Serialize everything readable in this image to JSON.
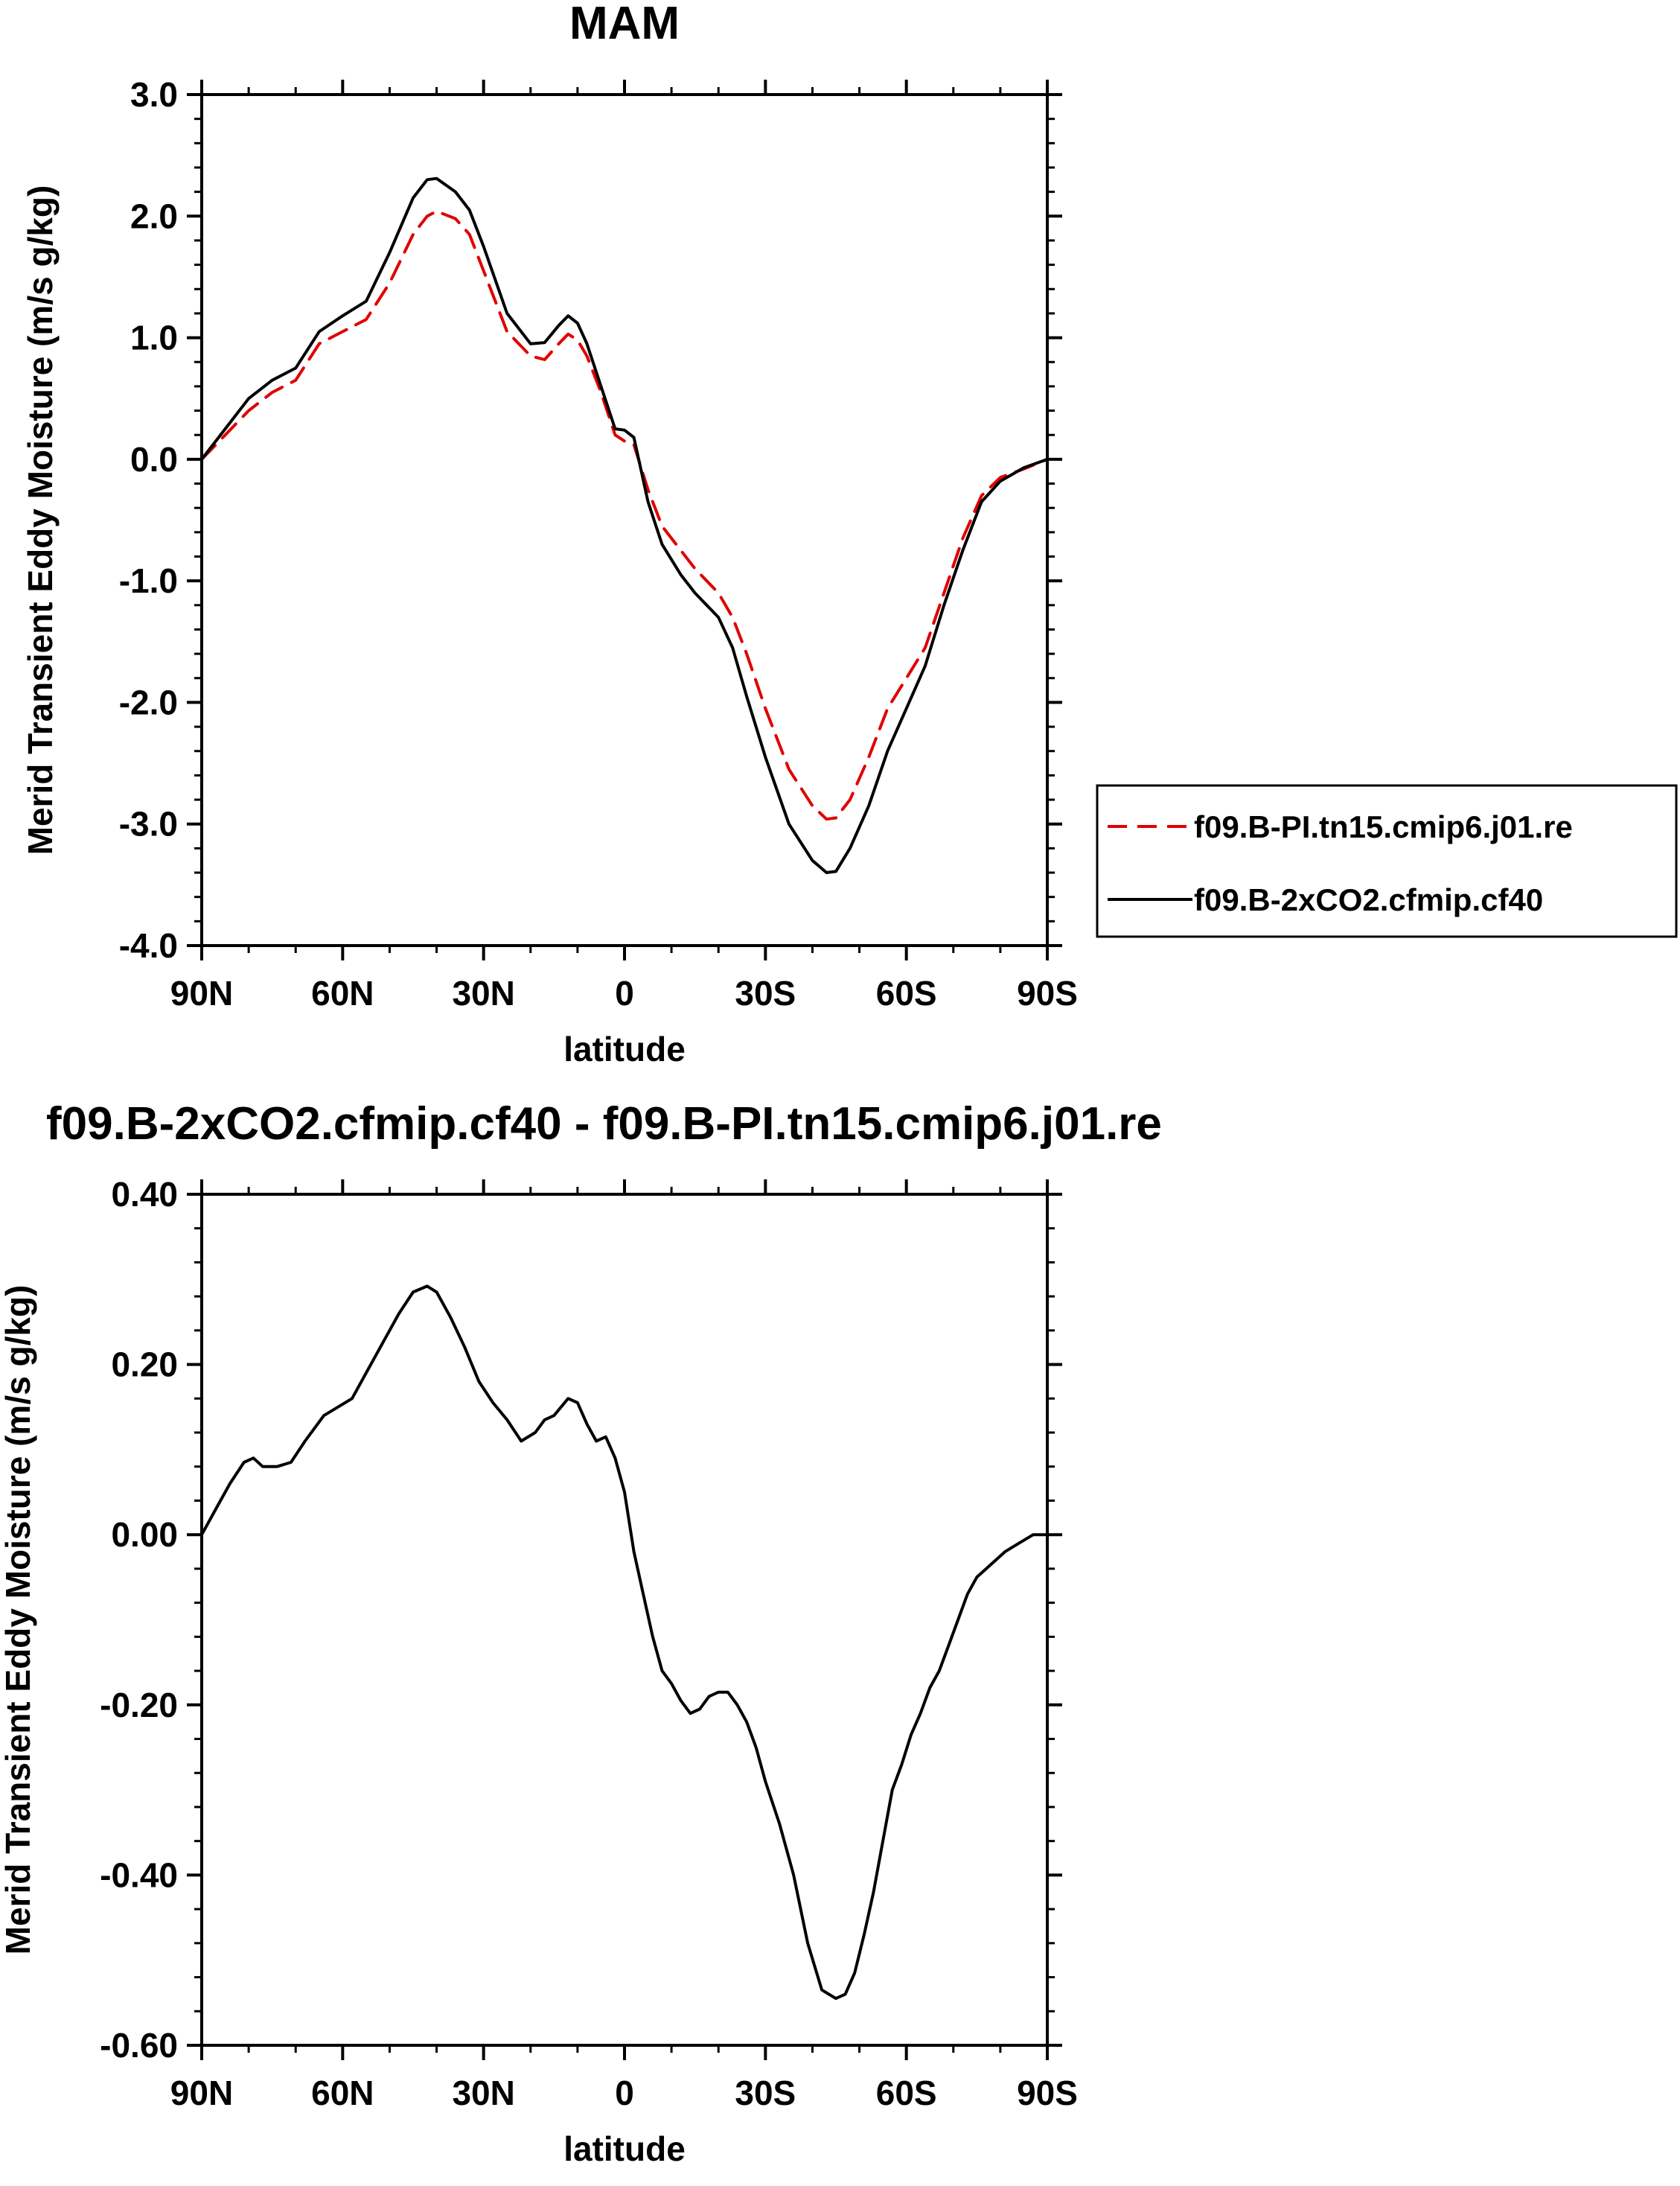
{
  "chart_data": [
    {
      "type": "line",
      "title": "MAM",
      "xlabel": "latitude",
      "ylabel": "Merid Transient Eddy Moisture (m/s g/kg)",
      "xlim": [
        90,
        -90
      ],
      "ylim": [
        -4.0,
        3.0
      ],
      "x_ticks": [
        90,
        60,
        30,
        0,
        -30,
        -60,
        -90
      ],
      "x_tick_labels": [
        "90N",
        "60N",
        "30N",
        "0",
        "30S",
        "60S",
        "90S"
      ],
      "y_ticks": [
        -4.0,
        -3.0,
        -2.0,
        -1.0,
        0.0,
        1.0,
        2.0,
        3.0
      ],
      "y_tick_labels": [
        "-4.0",
        "-3.0",
        "-2.0",
        "-1.0",
        "0.0",
        "1.0",
        "2.0",
        "3.0"
      ],
      "grid": false,
      "legend": "right",
      "series": [
        {
          "name": "f09.B-PI.tn15.cmip6.j01.re",
          "color": "#e00000",
          "dash": "dashed",
          "x": [
            90,
            85,
            80,
            75,
            70,
            65,
            60,
            55,
            50,
            45,
            42,
            40,
            36,
            33,
            30,
            25,
            20,
            17,
            14,
            12,
            10,
            8,
            5,
            2,
            0,
            -2,
            -5,
            -8,
            -12,
            -15,
            -20,
            -23,
            -26,
            -30,
            -35,
            -40,
            -43,
            -45,
            -48,
            -52,
            -56,
            -60,
            -64,
            -68,
            -72,
            -76,
            -80,
            -85,
            -90
          ],
          "y": [
            0.0,
            0.2,
            0.4,
            0.55,
            0.65,
            0.95,
            1.05,
            1.15,
            1.45,
            1.85,
            2.0,
            2.04,
            1.98,
            1.85,
            1.55,
            1.05,
            0.85,
            0.82,
            0.95,
            1.03,
            0.98,
            0.85,
            0.55,
            0.2,
            0.15,
            0.12,
            -0.25,
            -0.55,
            -0.75,
            -0.9,
            -1.1,
            -1.3,
            -1.6,
            -2.05,
            -2.55,
            -2.85,
            -2.96,
            -2.95,
            -2.8,
            -2.45,
            -2.05,
            -1.8,
            -1.55,
            -1.1,
            -0.65,
            -0.3,
            -0.15,
            -0.08,
            0.0
          ]
        },
        {
          "name": "f09.B-2xCO2.cfmip.cf40",
          "color": "#000000",
          "dash": "solid",
          "x": [
            90,
            85,
            80,
            75,
            70,
            65,
            60,
            55,
            50,
            45,
            42,
            40,
            36,
            33,
            30,
            25,
            20,
            17,
            14,
            12,
            10,
            8,
            5,
            2,
            0,
            -2,
            -5,
            -8,
            -12,
            -15,
            -20,
            -23,
            -26,
            -30,
            -35,
            -40,
            -43,
            -45,
            -48,
            -52,
            -56,
            -60,
            -64,
            -68,
            -72,
            -76,
            -80,
            -85,
            -90
          ],
          "y": [
            0.0,
            0.25,
            0.5,
            0.65,
            0.75,
            1.05,
            1.18,
            1.3,
            1.7,
            2.15,
            2.3,
            2.31,
            2.2,
            2.05,
            1.75,
            1.2,
            0.95,
            0.96,
            1.1,
            1.18,
            1.12,
            0.95,
            0.6,
            0.25,
            0.24,
            0.18,
            -0.35,
            -0.7,
            -0.95,
            -1.1,
            -1.3,
            -1.55,
            -1.95,
            -2.45,
            -3.0,
            -3.3,
            -3.4,
            -3.39,
            -3.2,
            -2.85,
            -2.4,
            -2.05,
            -1.7,
            -1.2,
            -0.75,
            -0.35,
            -0.18,
            -0.07,
            0.0
          ]
        }
      ]
    },
    {
      "type": "line",
      "title": "f09.B-2xCO2.cfmip.cf40 - f09.B-PI.tn15.cmip6.j01.re",
      "xlabel": "latitude",
      "ylabel": "Merid Transient Eddy Moisture (m/s g/kg)",
      "xlim": [
        90,
        -90
      ],
      "ylim": [
        -0.6,
        0.4
      ],
      "x_ticks": [
        90,
        60,
        30,
        0,
        -30,
        -60,
        -90
      ],
      "x_tick_labels": [
        "90N",
        "60N",
        "30N",
        "0",
        "30S",
        "60S",
        "90S"
      ],
      "y_ticks": [
        -0.6,
        -0.4,
        -0.2,
        0.0,
        0.2,
        0.4
      ],
      "y_tick_labels": [
        "-0.60",
        "-0.40",
        "-0.20",
        "0.00",
        "0.20",
        "0.40"
      ],
      "grid": false,
      "series": [
        {
          "color": "#000000",
          "dash": "solid",
          "x": [
            90,
            87,
            84,
            81,
            79,
            77,
            74,
            71,
            68,
            64,
            61,
            58,
            55,
            51,
            48,
            45,
            42,
            40,
            37,
            34,
            31,
            28,
            25,
            22,
            19,
            17,
            15,
            12,
            10,
            8,
            6,
            4,
            2,
            0,
            -2,
            -4,
            -6,
            -8,
            -10,
            -12,
            -14,
            -16,
            -18,
            -20,
            -22,
            -24,
            -26,
            -28,
            -30,
            -33,
            -36,
            -39,
            -42,
            -45,
            -47,
            -49,
            -51,
            -53,
            -55,
            -57,
            -59,
            -61,
            -63,
            -65,
            -67,
            -69,
            -71,
            -73,
            -75,
            -77,
            -79,
            -81,
            -84,
            -87,
            -90
          ],
          "y": [
            0.0,
            0.03,
            0.06,
            0.085,
            0.09,
            0.08,
            0.08,
            0.085,
            0.11,
            0.14,
            0.15,
            0.16,
            0.19,
            0.23,
            0.26,
            0.285,
            0.292,
            0.285,
            0.255,
            0.22,
            0.18,
            0.155,
            0.135,
            0.11,
            0.12,
            0.135,
            0.14,
            0.16,
            0.155,
            0.13,
            0.11,
            0.115,
            0.09,
            0.05,
            -0.02,
            -0.07,
            -0.12,
            -0.16,
            -0.175,
            -0.195,
            -0.21,
            -0.205,
            -0.19,
            -0.185,
            -0.185,
            -0.2,
            -0.22,
            -0.25,
            -0.29,
            -0.34,
            -0.4,
            -0.48,
            -0.535,
            -0.545,
            -0.54,
            -0.515,
            -0.47,
            -0.42,
            -0.36,
            -0.3,
            -0.27,
            -0.235,
            -0.21,
            -0.18,
            -0.16,
            -0.13,
            -0.1,
            -0.07,
            -0.05,
            -0.04,
            -0.03,
            -0.02,
            -0.01,
            0.0,
            0.0
          ]
        }
      ]
    }
  ]
}
